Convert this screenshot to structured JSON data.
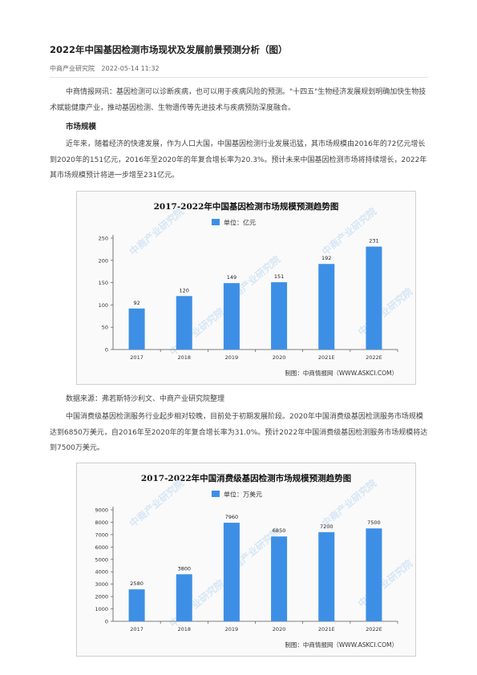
{
  "article": {
    "title": "2022年中国基因检测市场现状及发展前景预测分析（图）",
    "source_name": "中商产业研究院",
    "datetime": "2022-05-14 11:32",
    "para1": "中商情报网讯：基因检测可以诊断疾病，也可以用于疾病风险的预测。\"十四五\"生物经济发展规划明确加快生物技术赋能健康产业，推动基因检测、生物遗传等先进技术与疾病预防深度融合。",
    "subheading": "市场规模",
    "para2": "近年来，随着经济的快速发展，作为人口大国，中国基因检测行业发展迅猛，其市场规模由2016年的72亿元增长到2020年的151亿元，2016年至2020年的年复合增长率为20.3%。预计未来中国基因检测市场将持续增长，2022年其市场规模预计将进一步增至231亿元。",
    "data_source": "数据来源：弗若斯特沙利文、中商产业研究院整理",
    "para3": "中国消费级基因检测服务行业起步相对较晚，目前处于初期发展阶段。2020年中国消费级基因检测服务市场规模达到6850万美元，自2016年至2020年的年复合增长率为31.0%。预计2022年中国消费级基因检测服务市场规模将达到7500万美元。"
  },
  "chart_data": [
    {
      "type": "bar",
      "title": "2017-2022年中国基因检测市场规模预测趋势图",
      "legend": "单位：亿元",
      "categories": [
        "2017",
        "2018",
        "2019",
        "2020",
        "2021E",
        "2022E"
      ],
      "values": [
        92,
        120,
        149,
        151,
        192,
        231
      ],
      "ylim": [
        0,
        250
      ],
      "yticks": [
        "0",
        "50",
        "100",
        "150",
        "200",
        "250"
      ],
      "bar_color": "#3d8fe6",
      "credit": "制图：中商情报网（WWW.ASKCI.COM）"
    },
    {
      "type": "bar",
      "title": "2017-2022年中国消费级基因检测市场规模预测趋势图",
      "legend": "单位：万美元",
      "categories": [
        "2017",
        "2018",
        "2019",
        "2020",
        "2021E",
        "2022E"
      ],
      "values": [
        2580,
        3800,
        7960,
        6850,
        7200,
        7500
      ],
      "ylim": [
        0,
        9000
      ],
      "yticks": [
        "0",
        "1000",
        "2000",
        "3000",
        "4000",
        "5000",
        "6000",
        "7000",
        "8000",
        "9000"
      ],
      "bar_color": "#3d8fe6",
      "credit": "制图：中商情报网（WWW.ASKCI.COM）"
    }
  ]
}
